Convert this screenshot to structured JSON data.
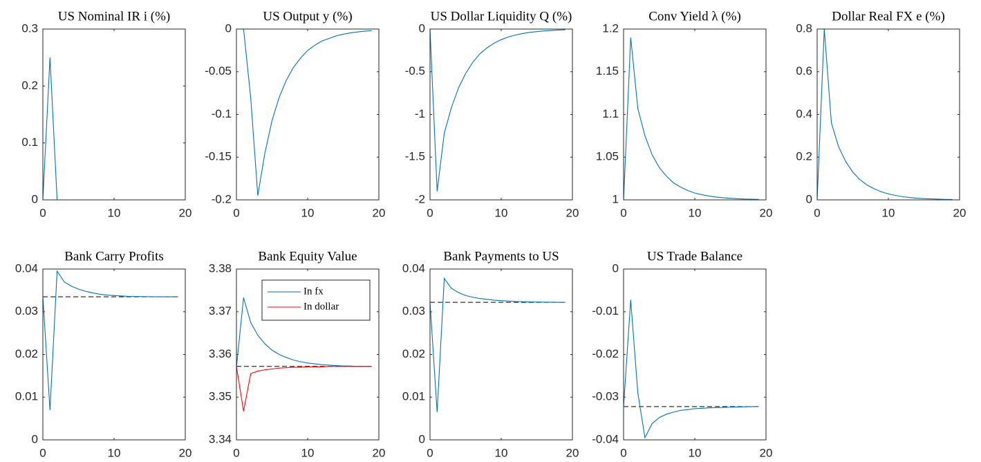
{
  "chart_data": [
    {
      "type": "line",
      "title": "US Nominal IR i (%)",
      "x": [
        0,
        1,
        2,
        3,
        4,
        5,
        6,
        7,
        8,
        9,
        10,
        11,
        12,
        13,
        14,
        15,
        16,
        17,
        18,
        19
      ],
      "values": [
        0,
        0.25,
        0,
        0,
        0,
        0,
        0,
        0,
        0,
        0,
        0,
        0,
        0,
        0,
        0,
        0,
        0,
        0,
        0,
        0
      ],
      "color": "#0072bd",
      "xlim": [
        0,
        20
      ],
      "xticks": [
        0,
        10,
        20
      ],
      "ylim": [
        0,
        0.3
      ],
      "yticks": [
        0,
        0.1,
        0.2,
        0.3
      ]
    },
    {
      "type": "line",
      "title": "US Output y (%)",
      "x": [
        0,
        1,
        2,
        3,
        4,
        5,
        6,
        7,
        8,
        9,
        10,
        11,
        12,
        13,
        14,
        15,
        16,
        17,
        18,
        19
      ],
      "values": [
        0,
        0,
        -0.08,
        -0.195,
        -0.145,
        -0.107,
        -0.08,
        -0.06,
        -0.045,
        -0.034,
        -0.025,
        -0.019,
        -0.014,
        -0.011,
        -0.008,
        -0.006,
        -0.0045,
        -0.0034,
        -0.0025,
        -0.0019
      ],
      "color": "#0072bd",
      "xlim": [
        0,
        20
      ],
      "xticks": [
        0,
        10,
        20
      ],
      "ylim": [
        -0.2,
        0
      ],
      "yticks": [
        -0.2,
        -0.15,
        -0.1,
        -0.05,
        0
      ]
    },
    {
      "type": "line",
      "title": "US Dollar Liquidity Q (%)",
      "x": [
        0,
        1,
        2,
        3,
        4,
        5,
        6,
        7,
        8,
        9,
        10,
        11,
        12,
        13,
        14,
        15,
        16,
        17,
        18,
        19
      ],
      "values": [
        0,
        -1.9,
        -1.22,
        -0.92,
        -0.69,
        -0.52,
        -0.39,
        -0.29,
        -0.22,
        -0.165,
        -0.124,
        -0.093,
        -0.07,
        -0.052,
        -0.039,
        -0.03,
        -0.022,
        -0.017,
        -0.012,
        -0.009
      ],
      "color": "#0072bd",
      "xlim": [
        0,
        20
      ],
      "xticks": [
        0,
        10,
        20
      ],
      "ylim": [
        -2,
        0
      ],
      "yticks": [
        -2,
        -1.5,
        -1,
        -0.5,
        0
      ]
    },
    {
      "type": "line",
      "title": "Conv Yield λ (%)",
      "x": [
        0,
        1,
        2,
        3,
        4,
        5,
        6,
        7,
        8,
        9,
        10,
        11,
        12,
        13,
        14,
        15,
        16,
        17,
        18,
        19
      ],
      "values": [
        1,
        1.19,
        1.107,
        1.075,
        1.053,
        1.038,
        1.028,
        1.02,
        1.015,
        1.011,
        1.008,
        1.006,
        1.0045,
        1.0033,
        1.0025,
        1.0019,
        1.0014,
        1.001,
        1.0008,
        1.0006
      ],
      "color": "#0072bd",
      "xlim": [
        0,
        20
      ],
      "xticks": [
        0,
        10,
        20
      ],
      "ylim": [
        1,
        1.2
      ],
      "yticks": [
        1,
        1.05,
        1.1,
        1.15,
        1.2
      ]
    },
    {
      "type": "line",
      "title": "Dollar Real FX e (%)",
      "x": [
        0,
        1,
        2,
        3,
        4,
        5,
        6,
        7,
        8,
        9,
        10,
        11,
        12,
        13,
        14,
        15,
        16,
        17,
        18,
        19
      ],
      "values": [
        0,
        0.8,
        0.36,
        0.25,
        0.18,
        0.13,
        0.095,
        0.07,
        0.052,
        0.038,
        0.028,
        0.021,
        0.015,
        0.011,
        0.008,
        0.006,
        0.0045,
        0.0033,
        0.0024,
        0.0018
      ],
      "color": "#0072bd",
      "xlim": [
        0,
        20
      ],
      "xticks": [
        0,
        10,
        20
      ],
      "ylim": [
        0,
        0.8
      ],
      "yticks": [
        0,
        0.2,
        0.4,
        0.6,
        0.8
      ]
    },
    {
      "type": "line",
      "title": "Bank Carry Profits",
      "x": [
        0,
        1,
        2,
        3,
        4,
        5,
        6,
        7,
        8,
        9,
        10,
        11,
        12,
        13,
        14,
        15,
        16,
        17,
        18,
        19
      ],
      "values": [
        0.0335,
        0.007,
        0.0395,
        0.037,
        0.036,
        0.0353,
        0.0348,
        0.0344,
        0.0341,
        0.0339,
        0.0338,
        0.0337,
        0.0336,
        0.03358,
        0.03355,
        0.03353,
        0.03352,
        0.03351,
        0.0335,
        0.0335
      ],
      "color": "#0072bd",
      "hline": 0.0335,
      "hline_color": "#000000",
      "xlim": [
        0,
        20
      ],
      "xticks": [
        0,
        10,
        20
      ],
      "ylim": [
        0,
        0.04
      ],
      "yticks": [
        0,
        0.01,
        0.02,
        0.03,
        0.04
      ]
    },
    {
      "type": "line",
      "title": "Bank Equity Value",
      "x": [
        0,
        1,
        2,
        3,
        4,
        5,
        6,
        7,
        8,
        9,
        10,
        11,
        12,
        13,
        14,
        15,
        16,
        17,
        18,
        19
      ],
      "series": [
        {
          "name": "In fx",
          "color": "#0072bd",
          "values": [
            3.357,
            3.3733,
            3.3675,
            3.3645,
            3.3625,
            3.361,
            3.36,
            3.3593,
            3.3587,
            3.3583,
            3.358,
            3.3578,
            3.3576,
            3.3575,
            3.3574,
            3.3573,
            3.3573,
            3.3572,
            3.3572,
            3.3572
          ]
        },
        {
          "name": "In dollar",
          "color": "#ff0000",
          "values": [
            3.3572,
            3.3467,
            3.3555,
            3.3561,
            3.3564,
            3.3566,
            3.3568,
            3.3569,
            3.357,
            3.357,
            3.3571,
            3.3571,
            3.3571,
            3.3572,
            3.3572,
            3.3572,
            3.3572,
            3.3572,
            3.3572,
            3.3572
          ]
        }
      ],
      "legend": "north",
      "hline": 3.3572,
      "hline_color": "#000000",
      "xlim": [
        0,
        20
      ],
      "xticks": [
        0,
        10,
        20
      ],
      "ylim": [
        3.34,
        3.38
      ],
      "yticks": [
        3.34,
        3.35,
        3.36,
        3.37,
        3.38
      ]
    },
    {
      "type": "line",
      "title": "Bank Payments to US",
      "x": [
        0,
        1,
        2,
        3,
        4,
        5,
        6,
        7,
        8,
        9,
        10,
        11,
        12,
        13,
        14,
        15,
        16,
        17,
        18,
        19
      ],
      "values": [
        0.0322,
        0.0065,
        0.0378,
        0.0355,
        0.0345,
        0.0338,
        0.0334,
        0.0331,
        0.0329,
        0.0327,
        0.0326,
        0.0325,
        0.0324,
        0.03235,
        0.0323,
        0.03228,
        0.03226,
        0.03224,
        0.03222,
        0.0322
      ],
      "color": "#0072bd",
      "hline": 0.0322,
      "hline_color": "#000000",
      "xlim": [
        0,
        20
      ],
      "xticks": [
        0,
        10,
        20
      ],
      "ylim": [
        0,
        0.04
      ],
      "yticks": [
        0,
        0.01,
        0.02,
        0.03,
        0.04
      ]
    },
    {
      "type": "line",
      "title": "US Trade Balance",
      "x": [
        0,
        1,
        2,
        3,
        4,
        5,
        6,
        7,
        8,
        9,
        10,
        11,
        12,
        13,
        14,
        15,
        16,
        17,
        18,
        19
      ],
      "values": [
        -0.0322,
        -0.0072,
        -0.029,
        -0.0395,
        -0.0362,
        -0.0348,
        -0.034,
        -0.0335,
        -0.0331,
        -0.0329,
        -0.0327,
        -0.0326,
        -0.0325,
        -0.03245,
        -0.0324,
        -0.03235,
        -0.0323,
        -0.03225,
        -0.03222,
        -0.0322
      ],
      "color": "#0072bd",
      "hline": -0.0322,
      "hline_color": "#000000",
      "xlim": [
        0,
        20
      ],
      "xticks": [
        0,
        10,
        20
      ],
      "ylim": [
        -0.04,
        0
      ],
      "yticks": [
        -0.04,
        -0.03,
        -0.02,
        -0.01,
        0
      ]
    }
  ]
}
